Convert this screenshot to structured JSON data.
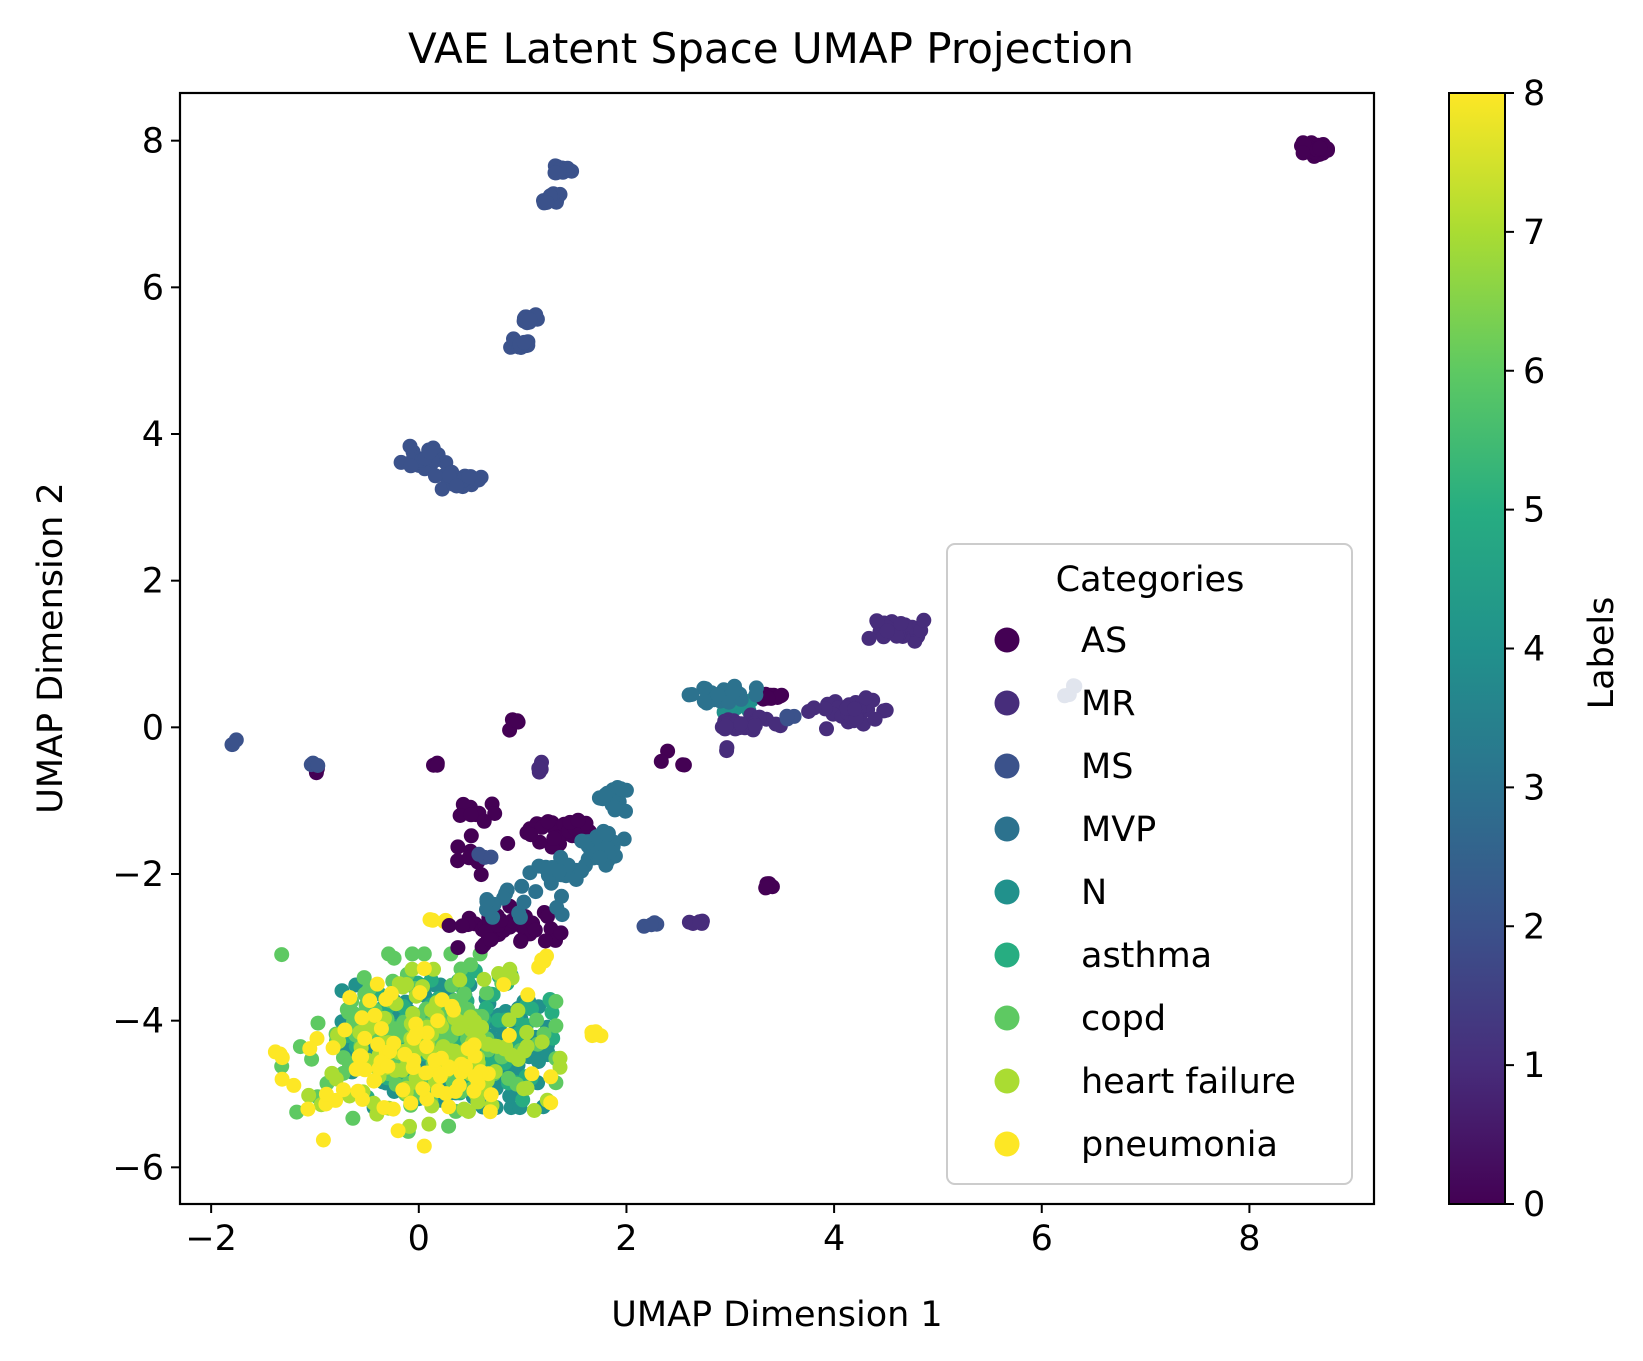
{
  "chart_data": {
    "type": "scatter",
    "title": "VAE Latent Space UMAP Projection",
    "xlabel": "UMAP Dimension 1",
    "ylabel": "UMAP Dimension 2",
    "xlim": [
      -2.3,
      9.2
    ],
    "ylim": [
      -6.5,
      8.65
    ],
    "xticks": [
      -2,
      0,
      2,
      4,
      6,
      8
    ],
    "yticks": [
      -6,
      -4,
      -2,
      0,
      2,
      4,
      6,
      8
    ],
    "xtick_labels": [
      "−2",
      "0",
      "2",
      "4",
      "6",
      "8"
    ],
    "ytick_labels": [
      "−6",
      "−4",
      "−2",
      "0",
      "2",
      "4",
      "6",
      "8"
    ],
    "grid": false,
    "legend": {
      "title": "Categories",
      "placement": "lower-right",
      "entries": [
        "AS",
        "MR",
        "MS",
        "MVP",
        "N",
        "asthma",
        "copd",
        "heart failure",
        "pneumonia"
      ]
    },
    "colorbar": {
      "label": "Labels",
      "range": [
        0,
        8
      ],
      "ticks": [
        0,
        1,
        2,
        3,
        4,
        5,
        6,
        7,
        8
      ],
      "colormap": "viridis"
    },
    "series": [
      {
        "name": "AS",
        "label_value": 0,
        "color": "#440154",
        "clusters": [
          {
            "center": [
              8.62,
              7.88
            ],
            "spread": [
              0.06,
              0.05
            ],
            "count": 40
          },
          {
            "center": [
              3.38,
              0.42
            ],
            "spread": [
              0.08,
              0.03
            ],
            "count": 14
          },
          {
            "center": [
              0.9,
              0.05
            ],
            "spread": [
              0.04,
              0.04
            ],
            "count": 4
          },
          {
            "center": [
              0.18,
              -0.5
            ],
            "spread": [
              0.03,
              0.02
            ],
            "count": 3
          },
          {
            "center": [
              -0.95,
              -0.6
            ],
            "spread": [
              0.03,
              0.03
            ],
            "count": 2
          },
          {
            "center": [
              0.55,
              -1.15
            ],
            "spread": [
              0.1,
              0.06
            ],
            "count": 10
          },
          {
            "center": [
              1.35,
              -1.45
            ],
            "spread": [
              0.14,
              0.1
            ],
            "count": 30
          },
          {
            "center": [
              0.7,
              -1.7
            ],
            "spread": [
              0.18,
              0.14
            ],
            "count": 8
          },
          {
            "center": [
              0.8,
              -2.75
            ],
            "spread": [
              0.28,
              0.16
            ],
            "count": 45
          },
          {
            "center": [
              3.38,
              -2.15
            ],
            "spread": [
              0.05,
              0.05
            ],
            "count": 5
          },
          {
            "center": [
              2.55,
              -0.4
            ],
            "spread": [
              0.12,
              0.12
            ],
            "count": 4
          },
          {
            "center": [
              1.38,
              -2.8
            ],
            "spread": [
              0.02,
              0.02
            ],
            "count": 1
          }
        ]
      },
      {
        "name": "MR",
        "label_value": 1,
        "color": "#472d7b",
        "clusters": [
          {
            "center": [
              4.6,
              1.35
            ],
            "spread": [
              0.12,
              0.08
            ],
            "count": 35
          },
          {
            "center": [
              4.15,
              0.2
            ],
            "spread": [
              0.18,
              0.1
            ],
            "count": 35
          },
          {
            "center": [
              3.05,
              0.05
            ],
            "spread": [
              0.2,
              0.06
            ],
            "count": 30
          },
          {
            "center": [
              2.7,
              -2.65
            ],
            "spread": [
              0.08,
              0.04
            ],
            "count": 5
          },
          {
            "center": [
              1.15,
              -0.5
            ],
            "spread": [
              0.05,
              0.05
            ],
            "count": 4
          },
          {
            "center": [
              2.95,
              -0.28
            ],
            "spread": [
              0.03,
              0.03
            ],
            "count": 2
          }
        ]
      },
      {
        "name": "MS",
        "label_value": 2,
        "color": "#3b528b",
        "clusters": [
          {
            "center": [
              1.38,
              7.6
            ],
            "spread": [
              0.05,
              0.05
            ],
            "count": 12
          },
          {
            "center": [
              1.25,
              7.2
            ],
            "spread": [
              0.05,
              0.05
            ],
            "count": 12
          },
          {
            "center": [
              1.05,
              5.55
            ],
            "spread": [
              0.05,
              0.04
            ],
            "count": 12
          },
          {
            "center": [
              0.98,
              5.2
            ],
            "spread": [
              0.05,
              0.05
            ],
            "count": 12
          },
          {
            "center": [
              0.05,
              3.68
            ],
            "spread": [
              0.1,
              0.07
            ],
            "count": 30
          },
          {
            "center": [
              0.38,
              3.38
            ],
            "spread": [
              0.1,
              0.06
            ],
            "count": 25
          },
          {
            "center": [
              -1.75,
              -0.22
            ],
            "spread": [
              0.03,
              0.03
            ],
            "count": 3
          },
          {
            "center": [
              -1.0,
              -0.5
            ],
            "spread": [
              0.03,
              0.03
            ],
            "count": 3
          },
          {
            "center": [
              6.3,
              0.48
            ],
            "spread": [
              0.05,
              0.04
            ],
            "count": 4
          },
          {
            "center": [
              2.25,
              -2.7
            ],
            "spread": [
              0.04,
              0.03
            ],
            "count": 4
          },
          {
            "center": [
              3.58,
              0.15
            ],
            "spread": [
              0.03,
              0.03
            ],
            "count": 3
          },
          {
            "center": [
              0.6,
              -1.7
            ],
            "spread": [
              0.05,
              0.05
            ],
            "count": 3
          }
        ]
      },
      {
        "name": "MVP",
        "label_value": 3,
        "color": "#2c728e",
        "clusters": [
          {
            "center": [
              1.85,
              -0.95
            ],
            "spread": [
              0.08,
              0.1
            ],
            "count": 20
          },
          {
            "center": [
              1.75,
              -1.65
            ],
            "spread": [
              0.12,
              0.12
            ],
            "count": 35
          },
          {
            "center": [
              1.4,
              -1.95
            ],
            "spread": [
              0.15,
              0.08
            ],
            "count": 25
          },
          {
            "center": [
              2.9,
              0.45
            ],
            "spread": [
              0.16,
              0.08
            ],
            "count": 25
          },
          {
            "center": [
              0.9,
              -2.4
            ],
            "spread": [
              0.22,
              0.2
            ],
            "count": 12
          },
          {
            "center": [
              0.65,
              -2.4
            ],
            "spread": [
              0.05,
              0.05
            ],
            "count": 5
          }
        ]
      },
      {
        "name": "N",
        "label_value": 4,
        "color": "#21918c",
        "clusters": [
          {
            "center": [
              0.25,
              -4.35
            ],
            "spread": [
              0.45,
              0.38
            ],
            "count": 300
          },
          {
            "center": [
              2.95,
              0.35
            ],
            "spread": [
              0.15,
              0.08
            ],
            "count": 10
          }
        ]
      },
      {
        "name": "asthma",
        "label_value": 5,
        "color": "#27ad81",
        "clusters": [
          {
            "center": [
              0.3,
              -4.2
            ],
            "spread": [
              0.45,
              0.4
            ],
            "count": 120
          }
        ]
      },
      {
        "name": "copd",
        "label_value": 6,
        "color": "#5ec962",
        "clusters": [
          {
            "center": [
              0.0,
              -4.3
            ],
            "spread": [
              0.6,
              0.55
            ],
            "count": 140
          }
        ]
      },
      {
        "name": "heart failure",
        "label_value": 7,
        "color": "#aadc32",
        "clusters": [
          {
            "center": [
              0.15,
              -4.4
            ],
            "spread": [
              0.55,
              0.5
            ],
            "count": 130
          }
        ]
      },
      {
        "name": "pneumonia",
        "label_value": 8,
        "color": "#fde725",
        "clusters": [
          {
            "center": [
              -0.05,
              -4.5
            ],
            "spread": [
              0.6,
              0.55
            ],
            "count": 90
          },
          {
            "center": [
              1.7,
              -4.2
            ],
            "spread": [
              0.05,
              0.04
            ],
            "count": 5
          },
          {
            "center": [
              -1.35,
              -4.45
            ],
            "spread": [
              0.03,
              0.03
            ],
            "count": 3
          },
          {
            "center": [
              0.2,
              -2.65
            ],
            "spread": [
              0.05,
              0.05
            ],
            "count": 4
          },
          {
            "center": [
              1.2,
              -3.2
            ],
            "spread": [
              0.05,
              0.05
            ],
            "count": 4
          }
        ]
      }
    ]
  }
}
